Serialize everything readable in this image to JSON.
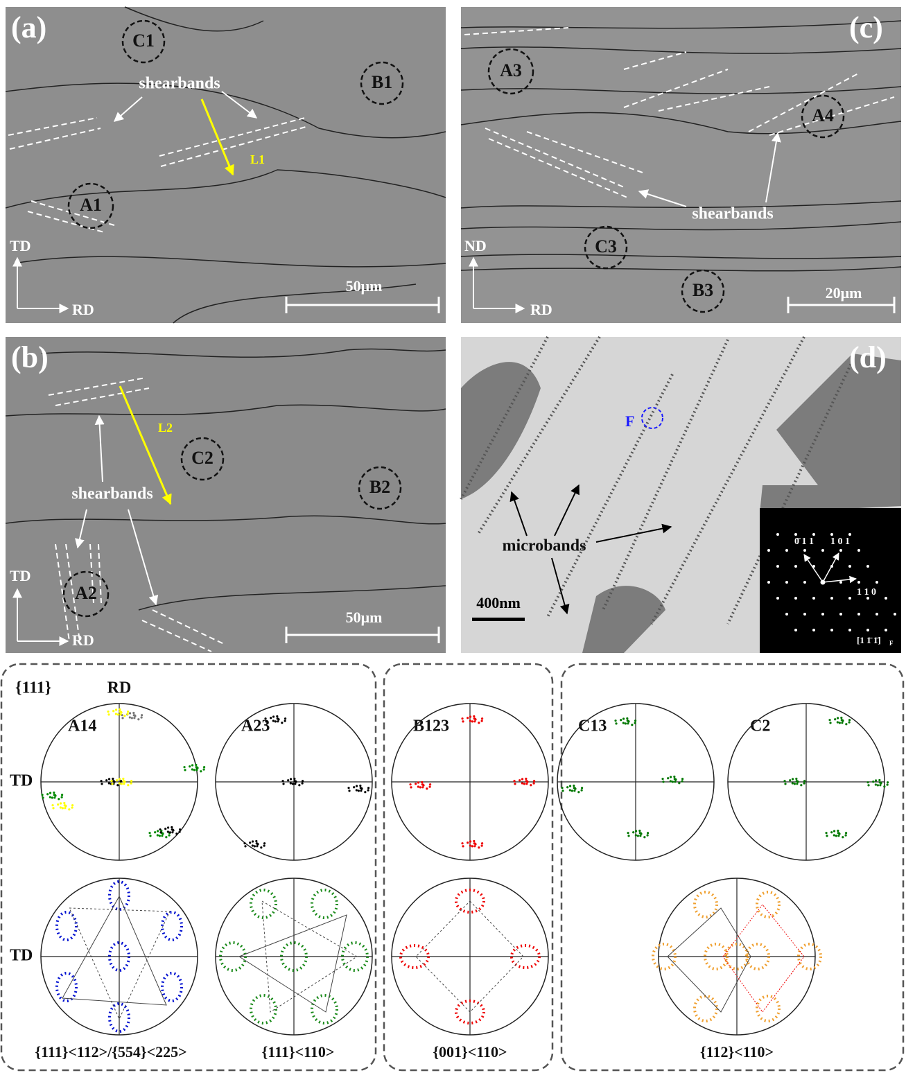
{
  "panels": [
    {
      "label": "(a)",
      "regions": [
        "C1",
        "B1",
        "A1"
      ],
      "annotation": "shearbands",
      "line_label": "L1",
      "axes": [
        "TD",
        "RD"
      ],
      "scale_bar": "50μm"
    },
    {
      "label": "(b)",
      "regions": [
        "C2",
        "B2",
        "A2"
      ],
      "annotation": "shearbands",
      "line_label": "L2",
      "axes": [
        "TD",
        "RD"
      ],
      "scale_bar": "50μm"
    },
    {
      "label": "(c)",
      "regions": [
        "A3",
        "A4",
        "C3",
        "B3"
      ],
      "annotation": "shearbands",
      "axes": [
        "ND",
        "RD"
      ],
      "scale_bar": "20μm"
    },
    {
      "label": "(d)",
      "marker": "F",
      "annotation": "microbands",
      "scale_bar": "400nm",
      "diffraction": {
        "spots": [
          "0̄ 1 1",
          "1 0 1",
          "1 1 0"
        ],
        "zone_axis": "[1 1̄ 1̄]",
        "zone_axis_sub": "F"
      }
    }
  ],
  "pole_figures": {
    "plane": "{111}",
    "rd": "RD",
    "td": [
      "TD",
      "TD"
    ],
    "labels": [
      "A14",
      "A23",
      "B123",
      "C13",
      "C2"
    ],
    "textures": [
      "{111}<112>/{554}<225>",
      "{111}<110>",
      "{001}<110>",
      "{112}<110>"
    ]
  }
}
